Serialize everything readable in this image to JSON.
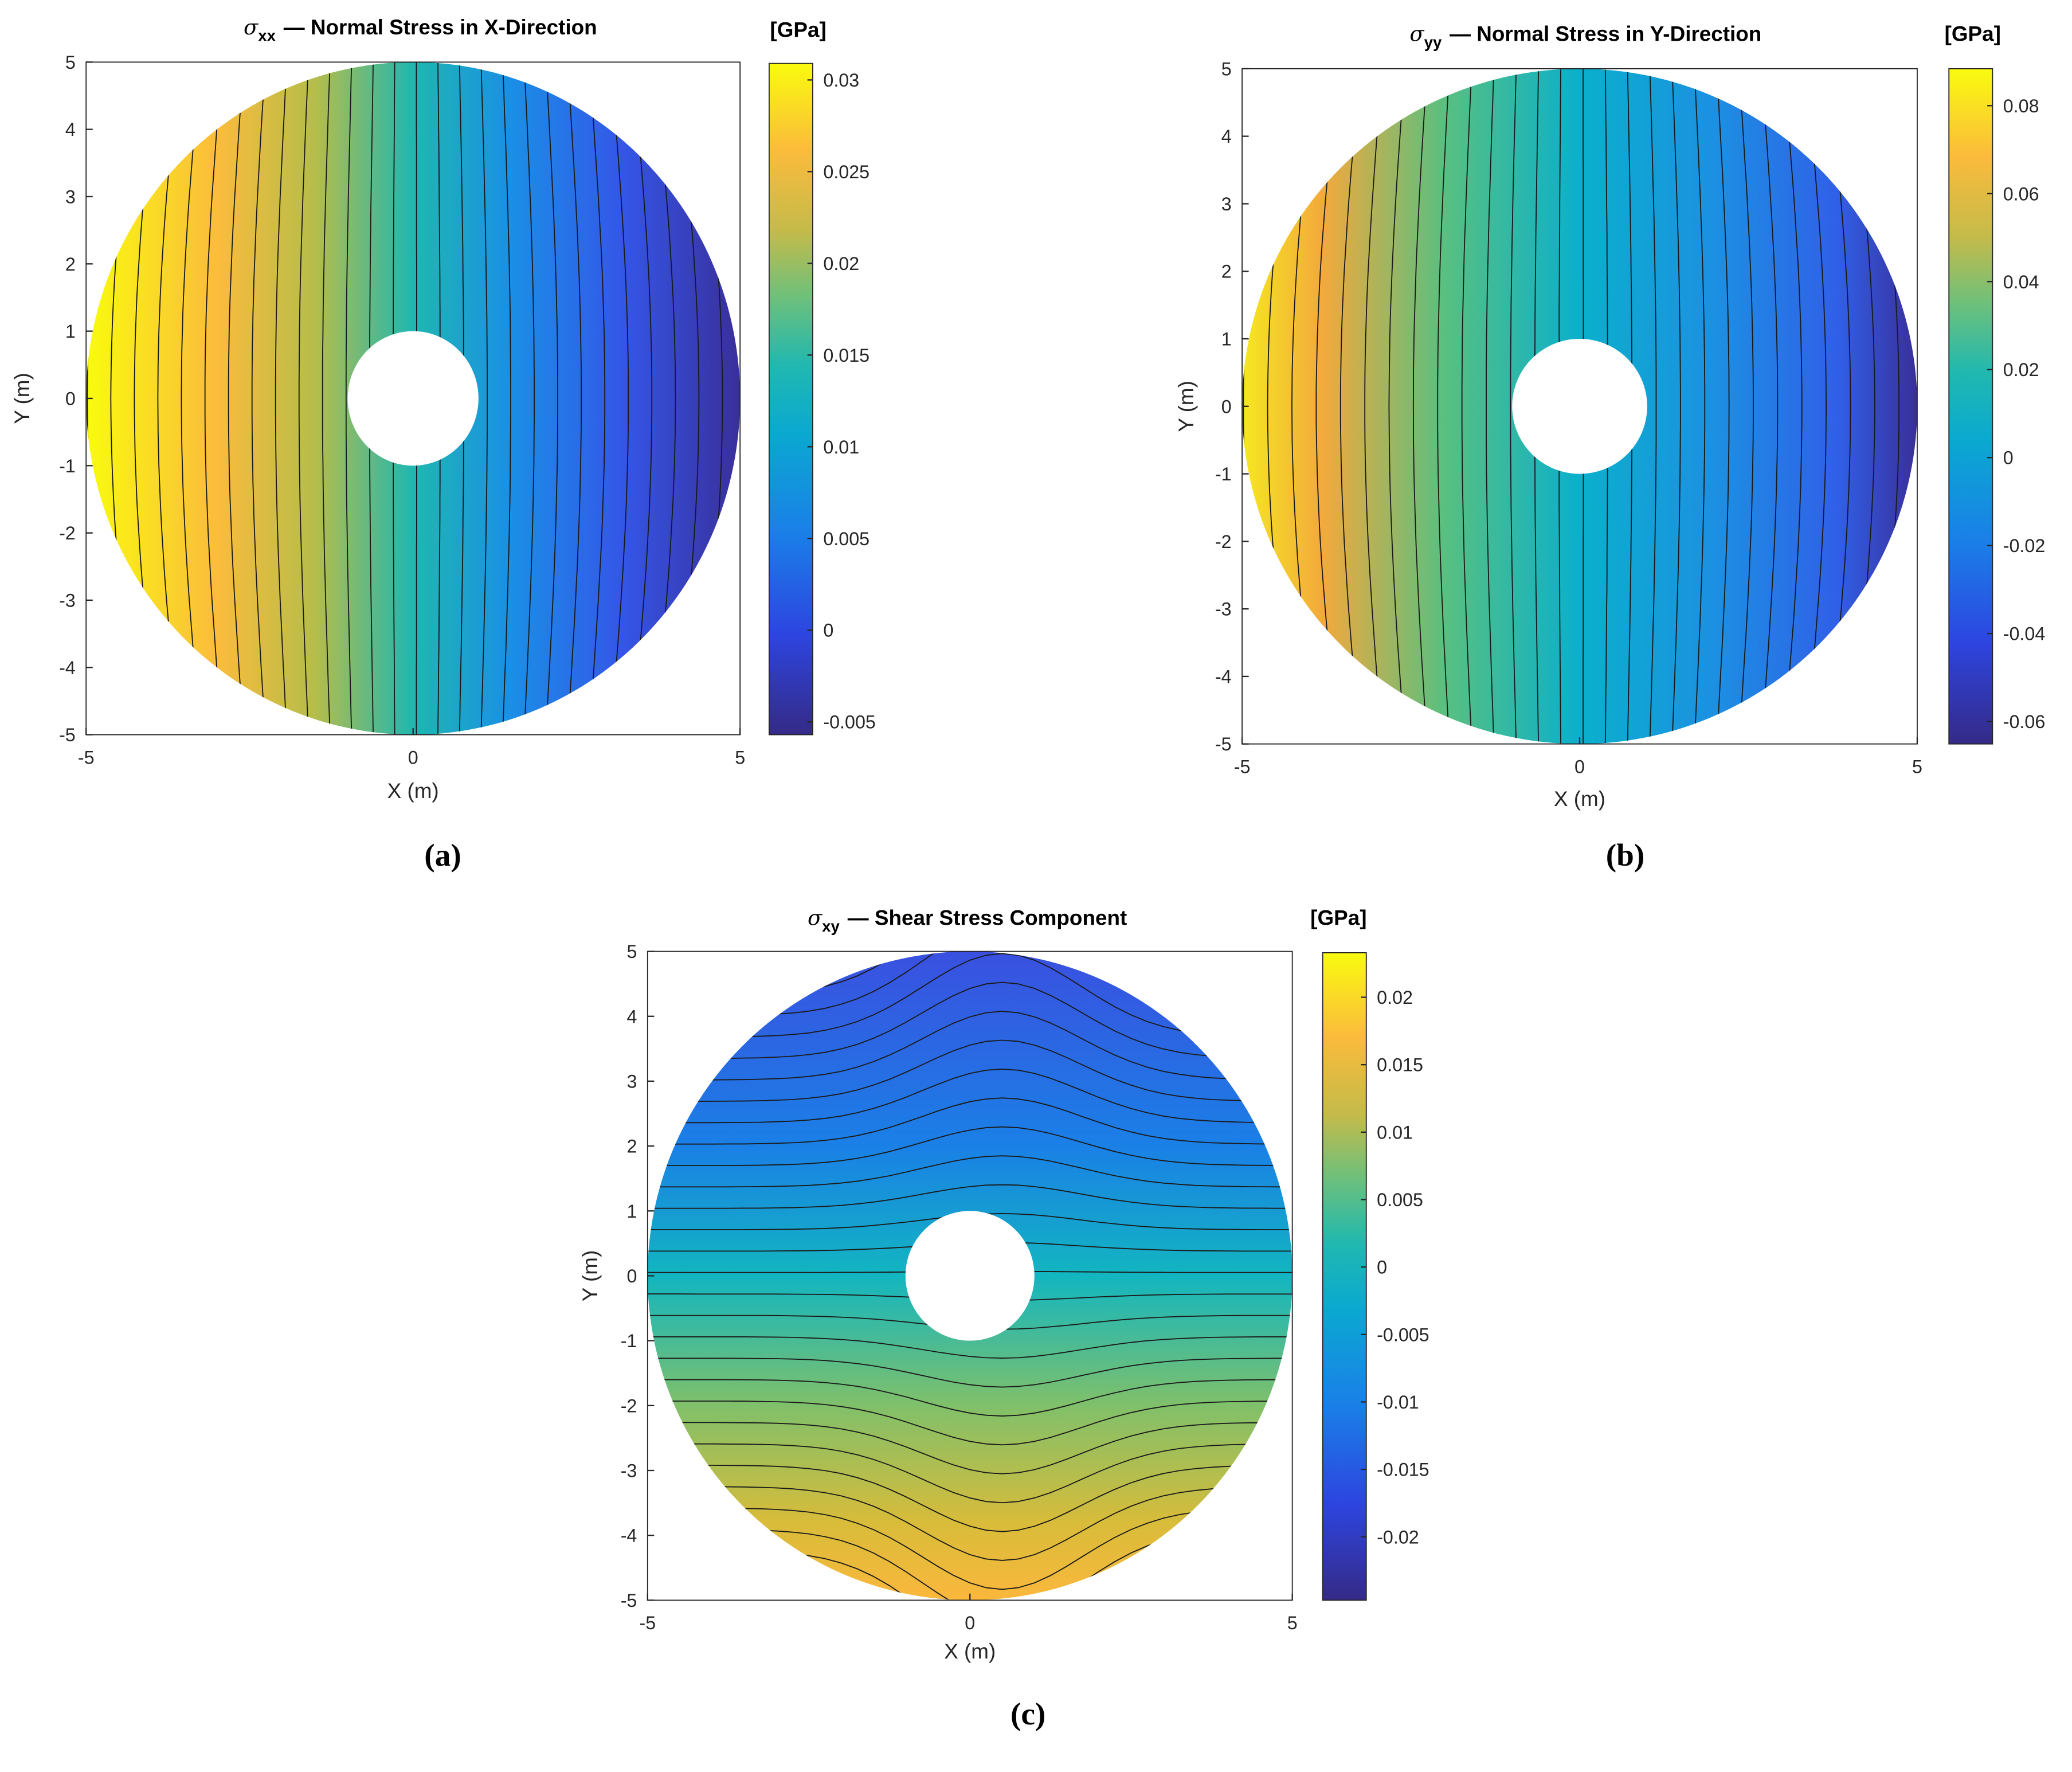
{
  "chart_data": [
    {
      "type": "contour",
      "title_symbol": "σ",
      "title_subscript": "xx",
      "title": "— Normal Stress in X-Direction",
      "colorbar_label": "[GPa]",
      "xlabel": "X (m)",
      "ylabel": "Y (m)",
      "panel_label": "(a)",
      "xlim": [
        -5,
        5
      ],
      "ylim": [
        -5,
        5
      ],
      "xticks": [
        -5,
        0,
        5
      ],
      "yticks": [
        -5,
        -4,
        -3,
        -2,
        -1,
        0,
        1,
        2,
        3,
        4,
        5
      ],
      "clim": [
        -0.0057,
        0.0309
      ],
      "cticks": [
        -0.005,
        0,
        0.005,
        0.01,
        0.015,
        0.02,
        0.025,
        0.03
      ]
    },
    {
      "type": "contour",
      "title_symbol": "σ",
      "title_subscript": "yy",
      "title": "— Normal Stress in Y-Direction",
      "colorbar_label": "[GPa]",
      "xlabel": "X (m)",
      "ylabel": "Y (m)",
      "panel_label": "(b)",
      "xlim": [
        -5,
        5
      ],
      "ylim": [
        -5,
        5
      ],
      "xticks": [
        -5,
        0,
        5
      ],
      "yticks": [
        -5,
        -4,
        -3,
        -2,
        -1,
        0,
        1,
        2,
        3,
        4,
        5
      ],
      "clim": [
        -0.0651,
        0.0884
      ],
      "cticks": [
        -0.06,
        -0.04,
        -0.02,
        0,
        0.02,
        0.04,
        0.06,
        0.08
      ]
    },
    {
      "type": "contour",
      "title_symbol": "σ",
      "title_subscript": "xy",
      "title": "— Shear Stress Component",
      "colorbar_label": "[GPa]",
      "xlabel": "X (m)",
      "ylabel": "Y (m)",
      "panel_label": "(c)",
      "xlim": [
        -5,
        5
      ],
      "ylim": [
        -5,
        5
      ],
      "xticks": [
        -5,
        0,
        5
      ],
      "yticks": [
        -5,
        -4,
        -3,
        -2,
        -1,
        0,
        1,
        2,
        3,
        4,
        5
      ],
      "clim": [
        -0.0247,
        0.0233
      ],
      "cticks": [
        -0.02,
        -0.015,
        -0.01,
        -0.005,
        0,
        0.005,
        0.01,
        0.015,
        0.02
      ]
    }
  ]
}
